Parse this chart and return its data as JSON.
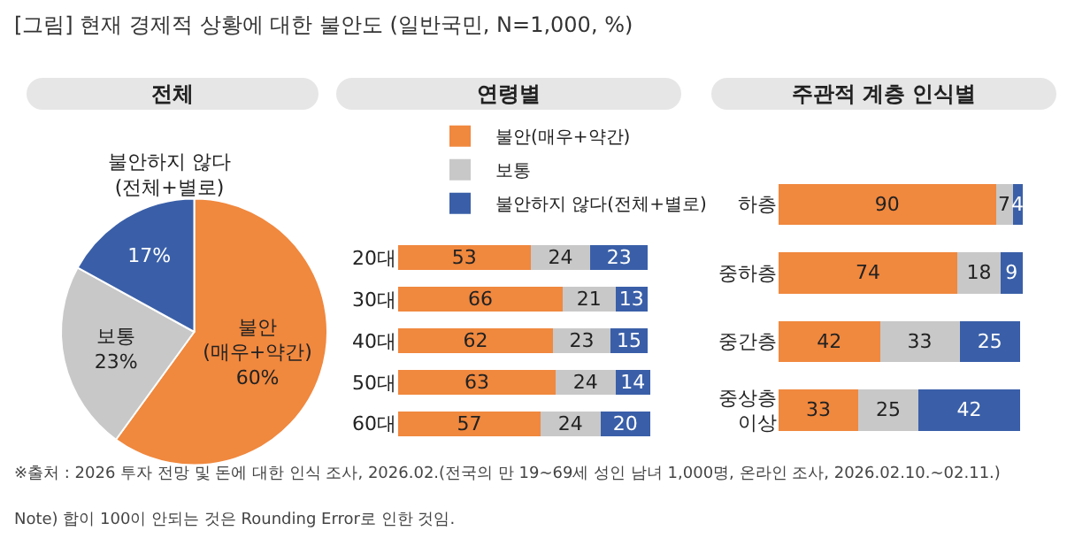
{
  "chart_data": [
    {
      "type": "pie",
      "title": "[그림] 현재 경제적 상황에 대한 불안도 (일반국민, N=1,000, %)",
      "subtitle": "전체",
      "categories": [
        "불안(매우+약간)",
        "보통",
        "불안하지 않다(전체+별로)"
      ],
      "values": [
        60,
        23,
        17
      ],
      "colors": [
        "#f0883e",
        "#c8c8c8",
        "#3a5fa8"
      ],
      "value_labels": [
        "60%",
        "23%",
        "17%"
      ],
      "annotations": [
        "※출처 : 2026 투자 전망 및 돈에 대한 인식 조사, 2026.02.(전국의 만 19~69세 성인 남녀 1,000명, 온라인 조사, 2026.02.10.~02.11.)",
        "Note) 합이 100이 안되는 것은 Rounding Error로 인한 것임."
      ]
    },
    {
      "type": "bar",
      "title": "연령별",
      "orientation": "horizontal",
      "stacked": true,
      "data_labels": true,
      "legend": "top",
      "tick_labels": "y",
      "categories": [
        "20대",
        "30대",
        "40대",
        "50대",
        "60대"
      ],
      "series": [
        {
          "name": "불안(매우+약간)",
          "color": "#f0883e",
          "values": [
            53,
            66,
            62,
            63,
            57
          ]
        },
        {
          "name": "보통",
          "color": "#c8c8c8",
          "values": [
            24,
            21,
            23,
            24,
            24
          ]
        },
        {
          "name": "불안하지 않다(전체+별로)",
          "color": "#3a5fa8",
          "values": [
            23,
            13,
            15,
            14,
            20
          ]
        }
      ]
    },
    {
      "type": "bar",
      "title": "주관적 계층 인식별",
      "orientation": "horizontal",
      "stacked": true,
      "data_labels": true,
      "tick_labels": "y",
      "categories": [
        "하층",
        "중하층",
        "중간층",
        "중상층\n이상"
      ],
      "series": [
        {
          "color": "#f0883e",
          "values": [
            90,
            74,
            42,
            33
          ]
        },
        {
          "color": "#c8c8c8",
          "values": [
            7,
            18,
            33,
            25
          ]
        },
        {
          "color": "#3a5fa8",
          "values": [
            4,
            9,
            25,
            42
          ]
        }
      ]
    }
  ]
}
